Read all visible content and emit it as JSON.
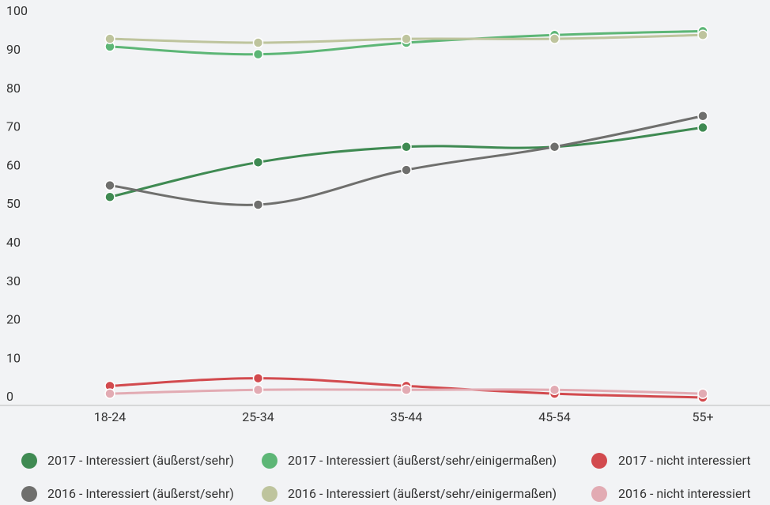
{
  "chart_data": {
    "type": "line",
    "categories": [
      "18-24",
      "25-34",
      "35-44",
      "45-54",
      "55+"
    ],
    "ylim": [
      0,
      100
    ],
    "yticks": [
      0,
      10,
      20,
      30,
      40,
      50,
      60,
      70,
      80,
      90,
      100
    ],
    "series": [
      {
        "name": "2017 - Interessiert (äußerst/sehr)",
        "color": "#3f8a52",
        "values": [
          52,
          61,
          65,
          65,
          70
        ]
      },
      {
        "name": "2017 - Interessiert (äußerst/sehr/einigermaßen)",
        "color": "#5db676",
        "values": [
          91,
          89,
          92,
          94,
          95
        ]
      },
      {
        "name": "2017 - nicht interessiert",
        "color": "#d24a4e",
        "values": [
          3,
          5,
          3,
          1,
          0
        ]
      },
      {
        "name": "2016 - Interessiert (äußerst/sehr)",
        "color": "#6f6f6d",
        "values": [
          55,
          50,
          59,
          65,
          73
        ]
      },
      {
        "name": "2016 - Interessiert (äußerst/sehr/einigermaßen)",
        "color": "#bec49d",
        "values": [
          93,
          92,
          93,
          93,
          94
        ]
      },
      {
        "name": "2016 - nicht interessiert",
        "color": "#e2abb3",
        "values": [
          1,
          2,
          2,
          2,
          1
        ]
      }
    ]
  }
}
